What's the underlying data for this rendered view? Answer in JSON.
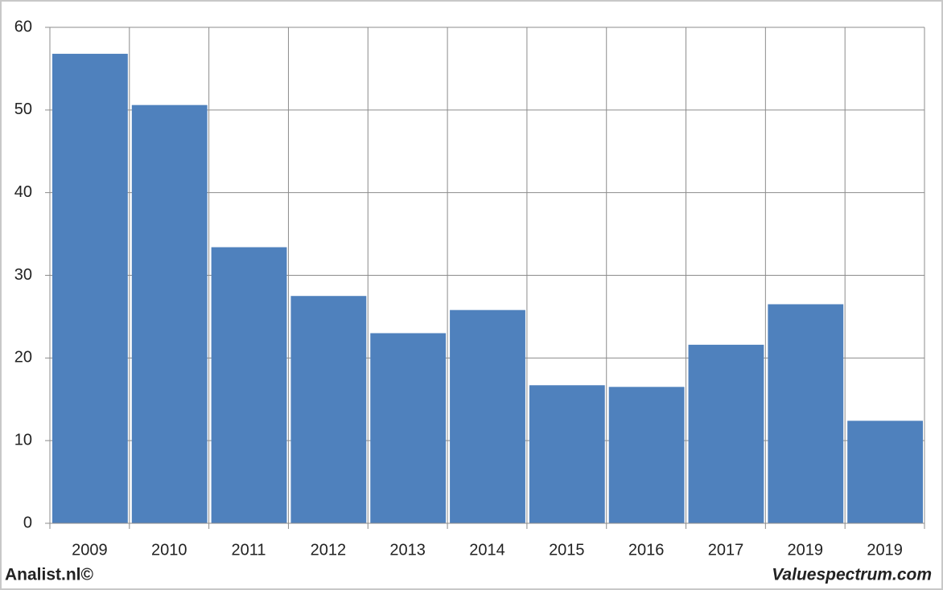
{
  "chart_data": {
    "type": "bar",
    "categories": [
      "2009",
      "2010",
      "2011",
      "2012",
      "2013",
      "2014",
      "2015",
      "2016",
      "2017",
      "2019",
      "2019"
    ],
    "values": [
      56.8,
      50.6,
      33.4,
      27.5,
      23.0,
      25.8,
      16.7,
      16.5,
      21.6,
      26.5,
      12.4
    ],
    "color": "#4f81bd",
    "ylim": [
      0,
      60
    ],
    "yticks": [
      0,
      10,
      20,
      30,
      40,
      50,
      60
    ],
    "grid": true
  },
  "footer": {
    "left": "Analist.nl©",
    "right": "Valuespectrum.com"
  }
}
